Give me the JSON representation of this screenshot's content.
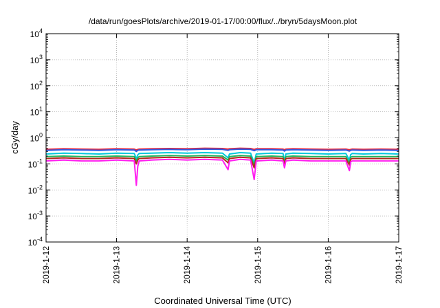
{
  "chart_data": {
    "type": "line",
    "title": "/data/run/goesPlots/archive/2019-01-17/00:00/flux/../bryn/5daysMoon.plot",
    "xlabel": "Coordinated Universal Time (UTC)",
    "ylabel": "cGy/day",
    "yscale": "log",
    "ylim": [
      0.0001,
      10000
    ],
    "xlim": [
      "2019-1-12",
      "2019-1-17"
    ],
    "grid": true,
    "x_ticks": [
      "2019-1-12",
      "2019-1-13",
      "2019-1-14",
      "2019-1-15",
      "2019-1-16",
      "2019-1-17"
    ],
    "y_ticks": [
      {
        "base": "10",
        "exp": "-4"
      },
      {
        "base": "10",
        "exp": "-3"
      },
      {
        "base": "10",
        "exp": "-2"
      },
      {
        "base": "10",
        "exp": "-1"
      },
      {
        "base": "10",
        "exp": "0"
      },
      {
        "base": "10",
        "exp": "1"
      },
      {
        "base": "10",
        "exp": "2"
      },
      {
        "base": "10",
        "exp": "3"
      },
      {
        "base": "10",
        "exp": "4"
      }
    ],
    "x": [
      0,
      0.25,
      0.5,
      0.75,
      1.0,
      1.25,
      1.28,
      1.3,
      1.32,
      1.5,
      1.75,
      2.0,
      2.25,
      2.5,
      2.58,
      2.6,
      2.75,
      2.9,
      2.95,
      2.98,
      3.2,
      3.36,
      3.38,
      3.4,
      3.5,
      3.75,
      4.0,
      4.25,
      4.3,
      4.32,
      4.34,
      4.5,
      4.75,
      5.0
    ],
    "series": [
      {
        "color": "#e8283c",
        "values": [
          0.36,
          0.38,
          0.37,
          0.36,
          0.38,
          0.37,
          0.34,
          0.36,
          0.37,
          0.38,
          0.39,
          0.38,
          0.4,
          0.39,
          0.37,
          0.38,
          0.4,
          0.39,
          0.36,
          0.38,
          0.38,
          0.37,
          0.35,
          0.37,
          0.38,
          0.37,
          0.36,
          0.37,
          0.35,
          0.36,
          0.37,
          0.36,
          0.37,
          0.36
        ]
      },
      {
        "color": "#2f56e0",
        "values": [
          0.33,
          0.35,
          0.34,
          0.33,
          0.35,
          0.34,
          0.3,
          0.33,
          0.34,
          0.35,
          0.36,
          0.35,
          0.37,
          0.36,
          0.33,
          0.35,
          0.37,
          0.36,
          0.32,
          0.35,
          0.35,
          0.34,
          0.31,
          0.34,
          0.35,
          0.34,
          0.33,
          0.34,
          0.31,
          0.33,
          0.34,
          0.33,
          0.34,
          0.33
        ]
      },
      {
        "color": "#00c8dc",
        "values": [
          0.24,
          0.26,
          0.25,
          0.24,
          0.26,
          0.25,
          0.16,
          0.22,
          0.25,
          0.26,
          0.27,
          0.26,
          0.27,
          0.26,
          0.17,
          0.24,
          0.27,
          0.26,
          0.11,
          0.24,
          0.26,
          0.25,
          0.13,
          0.24,
          0.26,
          0.25,
          0.24,
          0.25,
          0.14,
          0.23,
          0.25,
          0.24,
          0.25,
          0.24
        ]
      },
      {
        "color": "#22b45a",
        "values": [
          0.19,
          0.2,
          0.19,
          0.19,
          0.2,
          0.19,
          0.13,
          0.17,
          0.19,
          0.2,
          0.21,
          0.2,
          0.21,
          0.2,
          0.14,
          0.19,
          0.21,
          0.2,
          0.09,
          0.19,
          0.2,
          0.19,
          0.11,
          0.19,
          0.2,
          0.19,
          0.19,
          0.19,
          0.11,
          0.18,
          0.19,
          0.19,
          0.19,
          0.19
        ]
      },
      {
        "color": "#b4281e",
        "values": [
          0.16,
          0.17,
          0.16,
          0.16,
          0.17,
          0.16,
          0.1,
          0.14,
          0.16,
          0.17,
          0.18,
          0.17,
          0.18,
          0.17,
          0.11,
          0.16,
          0.18,
          0.17,
          0.07,
          0.16,
          0.17,
          0.16,
          0.09,
          0.16,
          0.17,
          0.16,
          0.16,
          0.16,
          0.09,
          0.15,
          0.16,
          0.16,
          0.16,
          0.16
        ]
      },
      {
        "color": "#ff1ef0",
        "values": [
          0.13,
          0.14,
          0.13,
          0.13,
          0.14,
          0.13,
          0.015,
          0.08,
          0.13,
          0.14,
          0.15,
          0.14,
          0.15,
          0.14,
          0.06,
          0.13,
          0.15,
          0.14,
          0.025,
          0.13,
          0.14,
          0.13,
          0.07,
          0.13,
          0.14,
          0.13,
          0.13,
          0.13,
          0.055,
          0.12,
          0.13,
          0.13,
          0.13,
          0.13
        ]
      }
    ]
  }
}
